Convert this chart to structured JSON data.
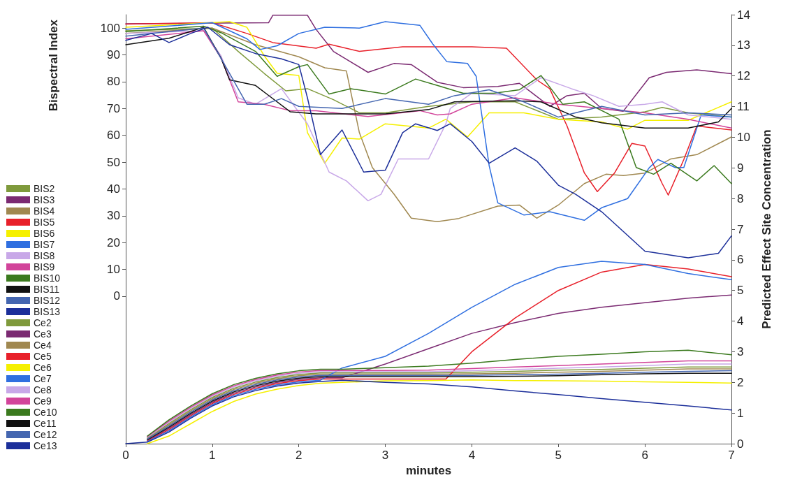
{
  "chart_data": {
    "type": "line",
    "xlabel": "minutes",
    "ylabel": "Bispectral Index",
    "y2label": "Predicted Effect Site Concentration",
    "xlim": [
      0,
      7
    ],
    "xticks": [
      0,
      1,
      2,
      3,
      4,
      5,
      6,
      7
    ],
    "ylim": [
      -55,
      105
    ],
    "yticks": [
      0,
      10,
      20,
      30,
      40,
      50,
      60,
      70,
      80,
      90,
      100
    ],
    "y2lim": [
      0,
      14
    ],
    "y2ticks": [
      0,
      1,
      2,
      3,
      4,
      5,
      6,
      7,
      8,
      9,
      10,
      11,
      12,
      13,
      14
    ],
    "grid": false,
    "legend": "left",
    "marker": "none",
    "line_style": "solid",
    "series": [
      {
        "name": "BIS2",
        "color": "#7f9a3c",
        "x": [
          0,
          1.0,
          1.3,
          1.6,
          1.85,
          2.1,
          2.4,
          2.7,
          3.0,
          3.5,
          4.0,
          4.5,
          5.0,
          5.5,
          6.0,
          6.2,
          6.5,
          7
        ],
        "values": [
          99,
          100,
          91.3,
          83.1,
          76.6,
          77.4,
          73.3,
          68.4,
          68.4,
          70.8,
          72.5,
          72.5,
          66,
          66.8,
          68.8,
          70.4,
          68.4,
          66.8
        ]
      },
      {
        "name": "BIS3",
        "color": "#7b2a72",
        "x": [
          0,
          1.65,
          1.7,
          2.1,
          2.2,
          2.4,
          2.8,
          3.1,
          3.3,
          3.6,
          3.9,
          4.3,
          4.55,
          4.9,
          5.1,
          5.3,
          5.5,
          5.75,
          6.05,
          6.25,
          6.6,
          7
        ],
        "values": [
          101.6,
          102,
          104.8,
          104.8,
          99.5,
          91.3,
          83.5,
          86.8,
          86.4,
          79.8,
          77.8,
          78.2,
          79.4,
          70.8,
          74.8,
          75.7,
          70,
          69,
          81.5,
          83.5,
          84.4,
          83
        ]
      },
      {
        "name": "BIS4",
        "color": "#a08850",
        "x": [
          0,
          1.0,
          1.5,
          2.0,
          2.3,
          2.55,
          2.7,
          2.85,
          3.1,
          3.3,
          3.6,
          3.85,
          4.3,
          4.55,
          4.75,
          5.0,
          5.3,
          5.55,
          5.75,
          6.0,
          6.3,
          6.6,
          7
        ],
        "values": [
          98,
          100,
          93.8,
          89.3,
          85.2,
          84,
          61,
          48,
          38.1,
          29.1,
          27.8,
          29,
          33.6,
          34,
          29.1,
          34,
          42,
          45.5,
          45,
          45.9,
          51.2,
          52.8,
          59.4
        ]
      },
      {
        "name": "BIS5",
        "color": "#e8202a",
        "x": [
          0,
          1.0,
          1.4,
          1.7,
          2.2,
          2.35,
          2.7,
          3.2,
          4.0,
          4.4,
          4.75,
          4.9,
          5.1,
          5.3,
          5.45,
          5.65,
          5.85,
          6.0,
          6.2,
          6.27,
          6.45,
          6.6,
          7
        ],
        "values": [
          101.5,
          102,
          98,
          94.6,
          92.5,
          94,
          91.3,
          93,
          93,
          92.5,
          80.7,
          77.4,
          63.5,
          46,
          39,
          46,
          57,
          56,
          42,
          37.7,
          51,
          63.5,
          62
        ]
      },
      {
        "name": "BIS6",
        "color": "#f5f000",
        "x": [
          0,
          1.2,
          1.4,
          1.6,
          1.75,
          2.0,
          2.1,
          2.3,
          2.5,
          2.7,
          3.0,
          3.5,
          3.7,
          3.95,
          4.2,
          4.6,
          5.0,
          5.5,
          5.8,
          6.0,
          6.5,
          7
        ],
        "values": [
          100.3,
          102.4,
          100.3,
          89.7,
          83.1,
          82.3,
          61,
          49.6,
          59,
          58.6,
          64.3,
          62.7,
          66,
          59.4,
          68.4,
          68.4,
          66,
          65,
          62.3,
          65.6,
          65.6,
          72.5
        ]
      },
      {
        "name": "BIS7",
        "color": "#2f6fe0",
        "x": [
          0,
          1.0,
          1.4,
          1.55,
          1.75,
          2.0,
          2.3,
          2.7,
          3.0,
          3.4,
          3.55,
          3.71,
          3.95,
          4.05,
          4.2,
          4.3,
          4.6,
          4.9,
          5.3,
          5.5,
          5.8,
          6.05,
          6.15,
          6.35,
          6.45,
          6.65,
          7
        ],
        "values": [
          99.5,
          102,
          96,
          92,
          93.4,
          98,
          100.3,
          100,
          102.4,
          101,
          94,
          87.5,
          86.8,
          82,
          48.7,
          34.8,
          30.3,
          31.5,
          28.3,
          33,
          36.4,
          47.9,
          51,
          48,
          48,
          67.6,
          66.8
        ]
      },
      {
        "name": "BIS8",
        "color": "#c8a8e8",
        "x": [
          0,
          0.9,
          1.1,
          1.3,
          1.5,
          1.8,
          1.95,
          2.1,
          2.35,
          2.55,
          2.8,
          2.95,
          3.15,
          3.5,
          3.7,
          3.75,
          4.0,
          4.5,
          4.8,
          5.15,
          5.4,
          5.7,
          6.0,
          6.2,
          6.5,
          7
        ],
        "values": [
          98,
          99,
          89.7,
          74,
          71.6,
          77.4,
          70.8,
          64.3,
          46.3,
          43,
          35.6,
          38,
          51.2,
          51.2,
          64.3,
          70,
          75.7,
          74.8,
          81.5,
          77.4,
          74.8,
          70.8,
          71.6,
          72.5,
          67.6,
          66
        ]
      },
      {
        "name": "BIS9",
        "color": "#d2449a",
        "x": [
          0,
          0.9,
          1.1,
          1.3,
          1.6,
          1.9,
          2.2,
          2.8,
          3.4,
          3.6,
          3.75,
          4.0,
          4.5,
          5.0,
          5.5,
          6.0,
          6.5,
          7
        ],
        "values": [
          96,
          99,
          88.9,
          72.5,
          71.6,
          69.2,
          69.2,
          67,
          69.2,
          67.6,
          68,
          71.6,
          74,
          71.6,
          70,
          68.4,
          66,
          62.7
        ]
      },
      {
        "name": "BIS10",
        "color": "#3b7a1e",
        "x": [
          0,
          0.9,
          1.1,
          1.5,
          1.75,
          2.0,
          2.1,
          2.35,
          2.6,
          3.0,
          3.35,
          3.6,
          3.9,
          4.25,
          4.55,
          4.8,
          5.05,
          5.3,
          5.7,
          5.9,
          6.1,
          6.3,
          6.6,
          6.8,
          7
        ],
        "values": [
          98.7,
          100.7,
          98.3,
          91.3,
          82,
          85.6,
          86.4,
          75.4,
          77.4,
          75.4,
          81,
          78.6,
          75.7,
          75.7,
          77,
          82.3,
          71.6,
          72.5,
          66,
          48,
          45.5,
          49.6,
          43,
          48.7,
          42
        ]
      },
      {
        "name": "BIS11",
        "color": "#111111",
        "x": [
          0,
          0.5,
          0.9,
          1.1,
          1.2,
          1.5,
          1.65,
          1.9,
          2.2,
          3.0,
          3.5,
          3.8,
          4.5,
          4.8,
          5.2,
          5.5,
          6.0,
          6.5,
          6.85,
          7
        ],
        "values": [
          93.8,
          96.2,
          100.3,
          88.9,
          80.7,
          78.6,
          74.9,
          68.8,
          68,
          68,
          69.6,
          72.5,
          72.9,
          72.5,
          66.8,
          64.7,
          62.7,
          62.7,
          65,
          70
        ]
      },
      {
        "name": "BIS12",
        "color": "#4466b0",
        "x": [
          0,
          0.9,
          1.2,
          1.4,
          1.6,
          1.8,
          2.0,
          2.5,
          3.0,
          3.5,
          3.8,
          4.2,
          4.6,
          5.0,
          5.5,
          6.0,
          6.5,
          7
        ],
        "values": [
          97,
          100,
          83.1,
          71.6,
          71.6,
          73.7,
          70.8,
          70,
          73.7,
          71.6,
          74.8,
          77,
          72.5,
          66.8,
          70.8,
          67.6,
          68.4,
          67.6
        ]
      },
      {
        "name": "BIS13",
        "color": "#1c2f9a",
        "x": [
          0,
          0.3,
          0.5,
          0.75,
          0.95,
          1.2,
          1.5,
          1.8,
          2.0,
          2.1,
          2.25,
          2.5,
          2.75,
          3.0,
          3.2,
          3.35,
          3.6,
          3.75,
          4.0,
          4.2,
          4.5,
          4.75,
          5.0,
          5.2,
          5.5,
          6.0,
          6.5,
          6.85,
          7
        ],
        "values": [
          95.4,
          98,
          94.6,
          98,
          100.3,
          93.8,
          90.5,
          88.5,
          86.4,
          74,
          52.8,
          62,
          46.3,
          47,
          61,
          64.3,
          61.8,
          64.3,
          57.7,
          49.6,
          55.3,
          50.4,
          41.4,
          38,
          31.5,
          16.8,
          14.3,
          16,
          22.5
        ]
      },
      {
        "name": "Ce2",
        "color": "#7f9a3c",
        "axis": "y2",
        "x": [
          0.25,
          0.5,
          0.75,
          1,
          1.25,
          1.5,
          1.75,
          2,
          2.25,
          2.5,
          3,
          3.5,
          4,
          4.5,
          5,
          5.5,
          6,
          6.5,
          7
        ],
        "values": [
          0.19,
          0.66,
          1.11,
          1.51,
          1.81,
          2.01,
          2.16,
          2.26,
          2.31,
          2.31,
          2.31,
          2.31,
          2.33,
          2.36,
          2.4,
          2.42,
          2.46,
          2.5,
          2.5
        ]
      },
      {
        "name": "Ce3",
        "color": "#7b2a72",
        "axis": "y2",
        "x": [
          0.25,
          0.5,
          0.75,
          1,
          1.25,
          1.5,
          1.75,
          2,
          2.25,
          2.5,
          3,
          3.5,
          4,
          4.5,
          5,
          5.5,
          6,
          6.5,
          7
        ],
        "values": [
          0.11,
          0.5,
          0.95,
          1.35,
          1.65,
          1.85,
          2.0,
          2.1,
          2.15,
          2.15,
          2.6,
          3.1,
          3.6,
          3.95,
          4.25,
          4.45,
          4.6,
          4.75,
          4.85
        ]
      },
      {
        "name": "Ce4",
        "color": "#a08850",
        "axis": "y2",
        "x": [
          0.25,
          0.5,
          0.75,
          1,
          1.25,
          1.5,
          1.75,
          2,
          2.25,
          2.5,
          3,
          3.5,
          4,
          4.5,
          5,
          5.5,
          6,
          6.5,
          7
        ],
        "values": [
          0.17,
          0.62,
          1.07,
          1.47,
          1.77,
          1.97,
          2.12,
          2.22,
          2.27,
          2.27,
          2.27,
          2.27,
          2.28,
          2.3,
          2.33,
          2.36,
          2.4,
          2.44,
          2.44
        ]
      },
      {
        "name": "Ce5",
        "color": "#e8202a",
        "axis": "y2",
        "x": [
          0.25,
          0.5,
          0.75,
          1,
          1.25,
          1.5,
          1.75,
          2,
          2.25,
          2.5,
          3,
          3.5,
          3.7,
          4,
          4.5,
          5,
          5.5,
          6,
          6.5,
          7
        ],
        "values": [
          0.09,
          0.46,
          0.91,
          1.31,
          1.61,
          1.81,
          1.96,
          2.06,
          2.11,
          2.11,
          2.11,
          2.11,
          2.11,
          3.0,
          4.1,
          5.0,
          5.6,
          5.85,
          5.7,
          5.45
        ]
      },
      {
        "name": "Ce6",
        "color": "#f5f000",
        "axis": "y2",
        "x": [
          0.25,
          0.5,
          0.75,
          1,
          1.25,
          1.5,
          1.75,
          2,
          2.25,
          2.5,
          3,
          3.5,
          4,
          4.5,
          5,
          5.5,
          6,
          6.5,
          7
        ],
        "values": [
          0,
          0.25,
          0.65,
          1.05,
          1.38,
          1.62,
          1.78,
          1.9,
          1.97,
          2.0,
          2.05,
          2.06,
          2.08,
          2.06,
          2.05,
          2.04,
          2.02,
          2.0,
          1.98
        ]
      },
      {
        "name": "Ce7",
        "color": "#2f6fe0",
        "axis": "y2",
        "x": [
          0.25,
          0.5,
          0.75,
          1,
          1.25,
          1.5,
          1.75,
          2,
          2.25,
          2.5,
          3,
          3.5,
          4,
          4.5,
          5,
          5.5,
          6,
          6.5,
          7
        ],
        "values": [
          0.07,
          0.42,
          0.87,
          1.27,
          1.57,
          1.77,
          1.92,
          2.02,
          2.07,
          2.47,
          2.85,
          3.6,
          4.45,
          5.2,
          5.75,
          5.95,
          5.85,
          5.55,
          5.35
        ]
      },
      {
        "name": "Ce8",
        "color": "#c8a8e8",
        "axis": "y2",
        "x": [
          0.25,
          0.5,
          0.75,
          1,
          1.25,
          1.5,
          1.75,
          2,
          2.25,
          2.5,
          3,
          3.5,
          4,
          4.5,
          5,
          5.5,
          6,
          6.5,
          7
        ],
        "values": [
          0.21,
          0.7,
          1.15,
          1.55,
          1.85,
          2.05,
          2.2,
          2.3,
          2.35,
          2.35,
          2.35,
          2.35,
          2.38,
          2.42,
          2.46,
          2.5,
          2.55,
          2.6,
          2.6
        ]
      },
      {
        "name": "Ce9",
        "color": "#d2449a",
        "axis": "y2",
        "x": [
          0.25,
          0.5,
          0.75,
          1,
          1.25,
          1.5,
          1.75,
          2,
          2.25,
          2.5,
          3,
          3.5,
          4,
          4.5,
          5,
          5.5,
          6,
          6.5,
          7
        ],
        "values": [
          0.23,
          0.74,
          1.19,
          1.59,
          1.89,
          2.09,
          2.24,
          2.34,
          2.39,
          2.39,
          2.39,
          2.4,
          2.45,
          2.5,
          2.55,
          2.6,
          2.65,
          2.7,
          2.7
        ]
      },
      {
        "name": "Ce10",
        "color": "#3b7a1e",
        "axis": "y2",
        "x": [
          0.25,
          0.5,
          0.75,
          1,
          1.25,
          1.5,
          1.75,
          2,
          2.25,
          2.5,
          3,
          3.5,
          4,
          4.5,
          5,
          5.5,
          6,
          6.5,
          7
        ],
        "values": [
          0.25,
          0.78,
          1.23,
          1.63,
          1.93,
          2.13,
          2.28,
          2.38,
          2.43,
          2.43,
          2.48,
          2.53,
          2.63,
          2.75,
          2.85,
          2.92,
          3.0,
          3.05,
          2.9
        ]
      },
      {
        "name": "Ce11",
        "color": "#111111",
        "axis": "y2",
        "x": [
          0.25,
          0.5,
          0.75,
          1,
          1.25,
          1.5,
          1.75,
          2,
          2.25,
          2.5,
          3,
          3.5,
          4,
          4.5,
          5,
          5.5,
          6,
          6.5,
          7
        ],
        "values": [
          0.13,
          0.54,
          0.99,
          1.39,
          1.69,
          1.89,
          2.04,
          2.14,
          2.19,
          2.19,
          2.19,
          2.19,
          2.19,
          2.2,
          2.22,
          2.25,
          2.28,
          2.3,
          2.3
        ]
      },
      {
        "name": "Ce12",
        "color": "#4466b0",
        "axis": "y2",
        "x": [
          0.25,
          0.5,
          0.75,
          1,
          1.25,
          1.5,
          1.75,
          2,
          2.25,
          2.5,
          3,
          3.5,
          4,
          4.5,
          5,
          5.5,
          6,
          6.5,
          7
        ],
        "values": [
          0.15,
          0.58,
          1.03,
          1.43,
          1.73,
          1.93,
          2.08,
          2.18,
          2.23,
          2.23,
          2.23,
          2.23,
          2.23,
          2.25,
          2.27,
          2.3,
          2.33,
          2.36,
          2.38
        ]
      },
      {
        "name": "Ce13",
        "color": "#1c2f9a",
        "axis": "y2",
        "x": [
          0,
          0.25,
          0.5,
          0.75,
          1,
          1.25,
          1.5,
          1.75,
          2,
          2.25,
          2.5,
          3,
          3.5,
          4,
          4.5,
          5,
          5.5,
          6,
          6.5,
          7
        ],
        "values": [
          0,
          0.05,
          0.38,
          0.83,
          1.23,
          1.53,
          1.73,
          1.88,
          1.98,
          2.03,
          2.07,
          2.0,
          1.95,
          1.85,
          1.72,
          1.6,
          1.47,
          1.35,
          1.23,
          1.1
        ]
      }
    ]
  }
}
